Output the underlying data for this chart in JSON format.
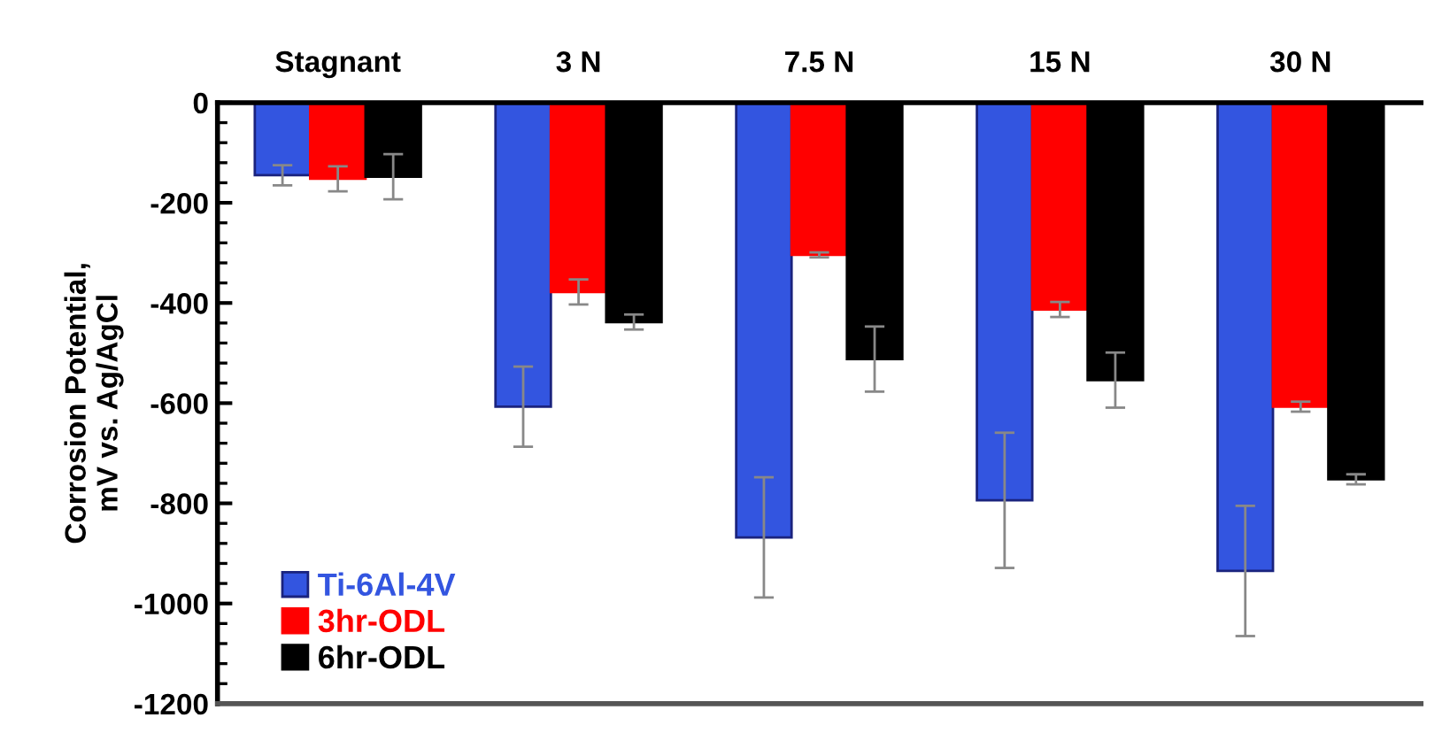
{
  "chart_data": {
    "type": "bar",
    "ylabel": "Corrosion Potential,\nmV vs. Ag/AgCl",
    "categories": [
      "Stagnant",
      "3 N",
      "7.5 N",
      "15 N",
      "30 N"
    ],
    "series": [
      {
        "name": "Ti-6Al-4V",
        "color": "#3355e0",
        "values": [
          -145,
          -607,
          -868,
          -794,
          -935
        ],
        "errors": [
          20,
          80,
          120,
          135,
          130
        ]
      },
      {
        "name": "3hr-ODL",
        "color": "#ff0000",
        "values": [
          -152,
          -378,
          -304,
          -413,
          -607
        ],
        "errors": [
          25,
          25,
          5,
          15,
          10
        ]
      },
      {
        "name": "6hr-ODL",
        "color": "#000000",
        "values": [
          -148,
          -438,
          -512,
          -554,
          -752
        ],
        "errors": [
          45,
          15,
          65,
          55,
          10
        ]
      }
    ],
    "ylim": [
      -1200,
      0
    ],
    "yticks": [
      -1200,
      -1000,
      -800,
      -600,
      -400,
      -200,
      0
    ],
    "grid": false,
    "legend": "bottom left"
  }
}
